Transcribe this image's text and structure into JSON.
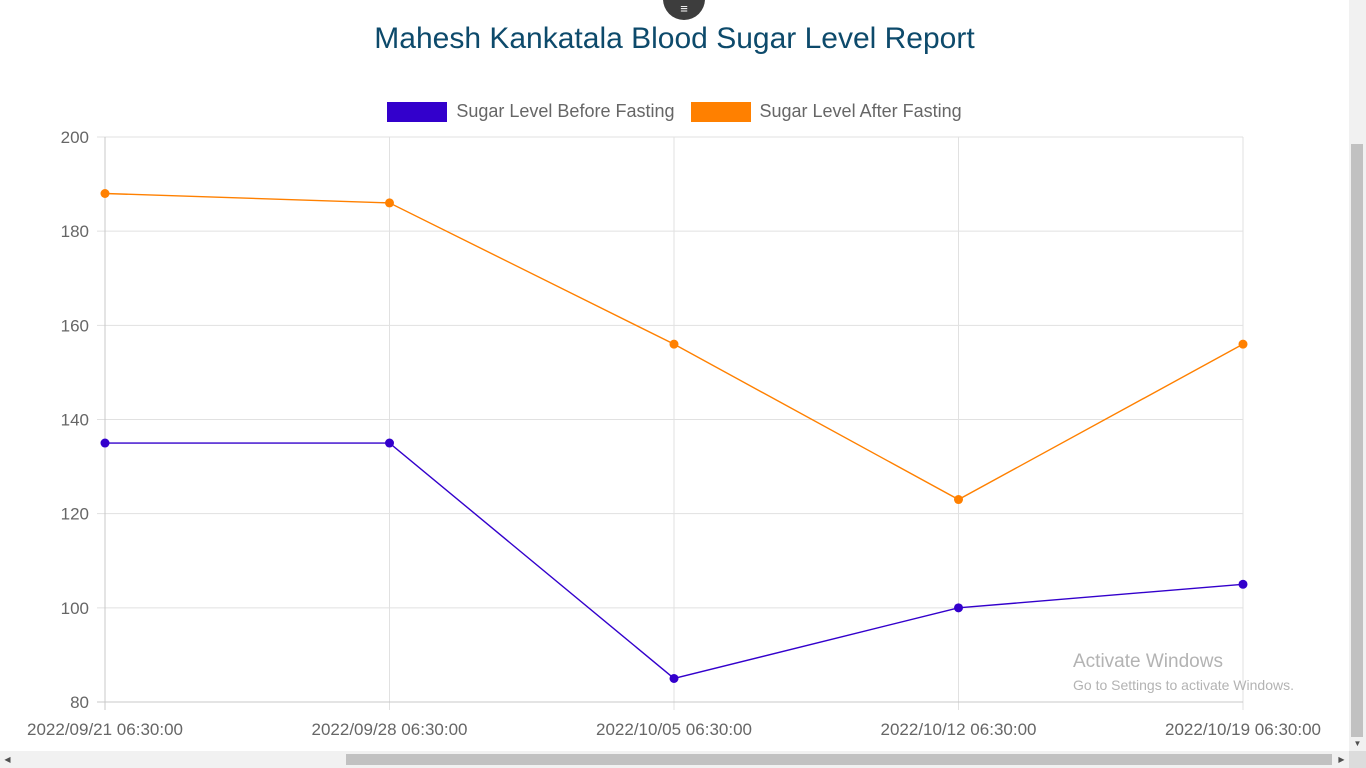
{
  "menu": {
    "icon": "hamburger-menu-icon",
    "glyph": "≡"
  },
  "chart_data": {
    "type": "line",
    "title": "Mahesh Kankatala Blood Sugar Level Report",
    "categories": [
      "2022/09/21 06:30:00",
      "2022/09/28 06:30:00",
      "2022/10/05 06:30:00",
      "2022/10/12 06:30:00",
      "2022/10/19 06:30:00"
    ],
    "series": [
      {
        "name": "Sugar Level Before Fasting",
        "color": "#3300cc",
        "values": [
          135,
          135,
          85,
          100,
          105
        ]
      },
      {
        "name": "Sugar Level After Fasting",
        "color": "#ff8000",
        "values": [
          188,
          186,
          156,
          123,
          156
        ]
      }
    ],
    "ylim": [
      80,
      200
    ],
    "yticks": [
      "80",
      "100",
      "120",
      "140",
      "160",
      "180",
      "200"
    ],
    "grid": true,
    "legend_position": "top"
  },
  "watermark": {
    "title": "Activate Windows",
    "subtitle": "Go to Settings to activate Windows."
  },
  "scrollbars": {
    "left_arrow": "◀",
    "right_arrow": "▶",
    "down_arrow": "▼"
  }
}
